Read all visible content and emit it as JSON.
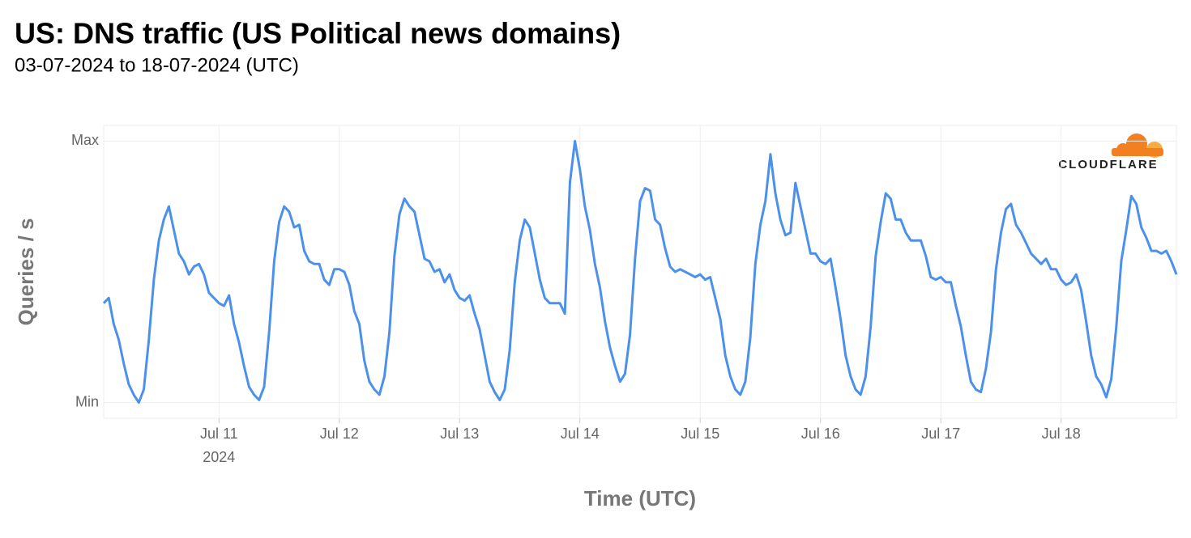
{
  "chart_data": {
    "type": "line",
    "title": "US: DNS traffic (US Political news domains)",
    "subtitle": "03-07-2024 to 18-07-2024 (UTC)",
    "y_label": "Queries / s",
    "x_label": "Time (UTC)",
    "x_year_label": "2024",
    "logo": "CLOUDFLARE",
    "grid": true,
    "xlim": [
      "2024-07-10T01:00",
      "2024-07-18T23:00"
    ],
    "ylim": [
      -0.06,
      1.06
    ],
    "yticks": [
      {
        "value": 0,
        "label": "Min"
      },
      {
        "value": 1,
        "label": "Max"
      }
    ],
    "xticks": [
      {
        "value": "2024-07-11T00:00",
        "label": "Jul 11"
      },
      {
        "value": "2024-07-12T00:00",
        "label": "Jul 12"
      },
      {
        "value": "2024-07-13T00:00",
        "label": "Jul 13"
      },
      {
        "value": "2024-07-14T00:00",
        "label": "Jul 14"
      },
      {
        "value": "2024-07-15T00:00",
        "label": "Jul 15"
      },
      {
        "value": "2024-07-16T00:00",
        "label": "Jul 16"
      },
      {
        "value": "2024-07-17T00:00",
        "label": "Jul 17"
      },
      {
        "value": "2024-07-18T00:00",
        "label": "Jul 18"
      }
    ],
    "x": [
      "2024-07-10T01:00",
      "2024-07-10T02:00",
      "2024-07-10T03:00",
      "2024-07-10T04:00",
      "2024-07-10T05:00",
      "2024-07-10T06:00",
      "2024-07-10T07:00",
      "2024-07-10T08:00",
      "2024-07-10T09:00",
      "2024-07-10T10:00",
      "2024-07-10T11:00",
      "2024-07-10T12:00",
      "2024-07-10T13:00",
      "2024-07-10T14:00",
      "2024-07-10T15:00",
      "2024-07-10T16:00",
      "2024-07-10T17:00",
      "2024-07-10T18:00",
      "2024-07-10T19:00",
      "2024-07-10T20:00",
      "2024-07-10T21:00",
      "2024-07-10T22:00",
      "2024-07-10T23:00",
      "2024-07-11T00:00",
      "2024-07-11T01:00",
      "2024-07-11T02:00",
      "2024-07-11T03:00",
      "2024-07-11T04:00",
      "2024-07-11T05:00",
      "2024-07-11T06:00",
      "2024-07-11T07:00",
      "2024-07-11T08:00",
      "2024-07-11T09:00",
      "2024-07-11T10:00",
      "2024-07-11T11:00",
      "2024-07-11T12:00",
      "2024-07-11T13:00",
      "2024-07-11T14:00",
      "2024-07-11T15:00",
      "2024-07-11T16:00",
      "2024-07-11T17:00",
      "2024-07-11T18:00",
      "2024-07-11T19:00",
      "2024-07-11T20:00",
      "2024-07-11T21:00",
      "2024-07-11T22:00",
      "2024-07-11T23:00",
      "2024-07-12T00:00",
      "2024-07-12T01:00",
      "2024-07-12T02:00",
      "2024-07-12T03:00",
      "2024-07-12T04:00",
      "2024-07-12T05:00",
      "2024-07-12T06:00",
      "2024-07-12T07:00",
      "2024-07-12T08:00",
      "2024-07-12T09:00",
      "2024-07-12T10:00",
      "2024-07-12T11:00",
      "2024-07-12T12:00",
      "2024-07-12T13:00",
      "2024-07-12T14:00",
      "2024-07-12T15:00",
      "2024-07-12T16:00",
      "2024-07-12T17:00",
      "2024-07-12T18:00",
      "2024-07-12T19:00",
      "2024-07-12T20:00",
      "2024-07-12T21:00",
      "2024-07-12T22:00",
      "2024-07-12T23:00",
      "2024-07-13T00:00",
      "2024-07-13T01:00",
      "2024-07-13T02:00",
      "2024-07-13T03:00",
      "2024-07-13T04:00",
      "2024-07-13T05:00",
      "2024-07-13T06:00",
      "2024-07-13T07:00",
      "2024-07-13T08:00",
      "2024-07-13T09:00",
      "2024-07-13T10:00",
      "2024-07-13T11:00",
      "2024-07-13T12:00",
      "2024-07-13T13:00",
      "2024-07-13T14:00",
      "2024-07-13T15:00",
      "2024-07-13T16:00",
      "2024-07-13T17:00",
      "2024-07-13T18:00",
      "2024-07-13T19:00",
      "2024-07-13T20:00",
      "2024-07-13T21:00",
      "2024-07-13T22:00",
      "2024-07-13T23:00",
      "2024-07-14T00:00",
      "2024-07-14T01:00",
      "2024-07-14T02:00",
      "2024-07-14T03:00",
      "2024-07-14T04:00",
      "2024-07-14T05:00",
      "2024-07-14T06:00",
      "2024-07-14T07:00",
      "2024-07-14T08:00",
      "2024-07-14T09:00",
      "2024-07-14T10:00",
      "2024-07-14T11:00",
      "2024-07-14T12:00",
      "2024-07-14T13:00",
      "2024-07-14T14:00",
      "2024-07-14T15:00",
      "2024-07-14T16:00",
      "2024-07-14T17:00",
      "2024-07-14T18:00",
      "2024-07-14T19:00",
      "2024-07-14T20:00",
      "2024-07-14T21:00",
      "2024-07-14T22:00",
      "2024-07-14T23:00",
      "2024-07-15T00:00",
      "2024-07-15T01:00",
      "2024-07-15T02:00",
      "2024-07-15T03:00",
      "2024-07-15T04:00",
      "2024-07-15T05:00",
      "2024-07-15T06:00",
      "2024-07-15T07:00",
      "2024-07-15T08:00",
      "2024-07-15T09:00",
      "2024-07-15T10:00",
      "2024-07-15T11:00",
      "2024-07-15T12:00",
      "2024-07-15T13:00",
      "2024-07-15T14:00",
      "2024-07-15T15:00",
      "2024-07-15T16:00",
      "2024-07-15T17:00",
      "2024-07-15T18:00",
      "2024-07-15T19:00",
      "2024-07-15T20:00",
      "2024-07-15T21:00",
      "2024-07-15T22:00",
      "2024-07-15T23:00",
      "2024-07-16T00:00",
      "2024-07-16T01:00",
      "2024-07-16T02:00",
      "2024-07-16T03:00",
      "2024-07-16T04:00",
      "2024-07-16T05:00",
      "2024-07-16T06:00",
      "2024-07-16T07:00",
      "2024-07-16T08:00",
      "2024-07-16T09:00",
      "2024-07-16T10:00",
      "2024-07-16T11:00",
      "2024-07-16T12:00",
      "2024-07-16T13:00",
      "2024-07-16T14:00",
      "2024-07-16T15:00",
      "2024-07-16T16:00",
      "2024-07-16T17:00",
      "2024-07-16T18:00",
      "2024-07-16T19:00",
      "2024-07-16T20:00",
      "2024-07-16T21:00",
      "2024-07-16T22:00",
      "2024-07-16T23:00",
      "2024-07-17T00:00",
      "2024-07-17T01:00",
      "2024-07-17T02:00",
      "2024-07-17T03:00",
      "2024-07-17T04:00",
      "2024-07-17T05:00",
      "2024-07-17T06:00",
      "2024-07-17T07:00",
      "2024-07-17T08:00",
      "2024-07-17T09:00",
      "2024-07-17T10:00",
      "2024-07-17T11:00",
      "2024-07-17T12:00",
      "2024-07-17T13:00",
      "2024-07-17T14:00",
      "2024-07-17T15:00",
      "2024-07-17T16:00",
      "2024-07-17T17:00",
      "2024-07-17T18:00",
      "2024-07-17T19:00",
      "2024-07-17T20:00",
      "2024-07-17T21:00",
      "2024-07-17T22:00",
      "2024-07-17T23:00",
      "2024-07-18T00:00",
      "2024-07-18T01:00",
      "2024-07-18T02:00",
      "2024-07-18T03:00",
      "2024-07-18T04:00",
      "2024-07-18T05:00",
      "2024-07-18T06:00",
      "2024-07-18T07:00",
      "2024-07-18T08:00",
      "2024-07-18T09:00",
      "2024-07-18T10:00",
      "2024-07-18T11:00",
      "2024-07-18T12:00",
      "2024-07-18T13:00",
      "2024-07-18T14:00",
      "2024-07-18T15:00",
      "2024-07-18T16:00",
      "2024-07-18T17:00",
      "2024-07-18T18:00",
      "2024-07-18T19:00",
      "2024-07-18T20:00",
      "2024-07-18T21:00",
      "2024-07-18T22:00",
      "2024-07-18T23:00"
    ],
    "series": [
      {
        "color": "#4b91ec",
        "values": [
          0.38,
          0.4,
          0.3,
          0.24,
          0.15,
          0.07,
          0.03,
          0,
          0.05,
          0.24,
          0.47,
          0.62,
          0.7,
          0.75,
          0.66,
          0.57,
          0.54,
          0.49,
          0.52,
          0.53,
          0.49,
          0.42,
          0.4,
          0.38,
          0.37,
          0.41,
          0.3,
          0.23,
          0.14,
          0.06,
          0.03,
          0.01,
          0.06,
          0.27,
          0.54,
          0.69,
          0.75,
          0.73,
          0.67,
          0.68,
          0.58,
          0.54,
          0.53,
          0.53,
          0.47,
          0.45,
          0.51,
          0.51,
          0.5,
          0.45,
          0.35,
          0.3,
          0.16,
          0.08,
          0.05,
          0.03,
          0.1,
          0.27,
          0.56,
          0.72,
          0.78,
          0.75,
          0.73,
          0.64,
          0.55,
          0.54,
          0.5,
          0.51,
          0.46,
          0.49,
          0.43,
          0.4,
          0.39,
          0.41,
          0.34,
          0.28,
          0.18,
          0.08,
          0.04,
          0.01,
          0.05,
          0.2,
          0.46,
          0.62,
          0.7,
          0.67,
          0.57,
          0.47,
          0.4,
          0.38,
          0.38,
          0.38,
          0.34,
          0.84,
          1.0,
          0.89,
          0.75,
          0.66,
          0.53,
          0.44,
          0.31,
          0.21,
          0.14,
          0.08,
          0.11,
          0.26,
          0.55,
          0.77,
          0.82,
          0.81,
          0.7,
          0.68,
          0.59,
          0.52,
          0.5,
          0.51,
          0.5,
          0.49,
          0.48,
          0.49,
          0.47,
          0.48,
          0.4,
          0.32,
          0.18,
          0.1,
          0.05,
          0.03,
          0.08,
          0.25,
          0.53,
          0.68,
          0.77,
          0.95,
          0.8,
          0.7,
          0.64,
          0.65,
          0.84,
          0.75,
          0.66,
          0.57,
          0.57,
          0.54,
          0.53,
          0.55,
          0.44,
          0.32,
          0.18,
          0.1,
          0.05,
          0.03,
          0.1,
          0.29,
          0.56,
          0.69,
          0.8,
          0.78,
          0.7,
          0.7,
          0.65,
          0.62,
          0.62,
          0.62,
          0.56,
          0.48,
          0.47,
          0.48,
          0.46,
          0.46,
          0.37,
          0.29,
          0.18,
          0.08,
          0.05,
          0.04,
          0.13,
          0.27,
          0.51,
          0.65,
          0.74,
          0.76,
          0.68,
          0.65,
          0.61,
          0.57,
          0.55,
          0.53,
          0.55,
          0.51,
          0.51,
          0.47,
          0.45,
          0.46,
          0.49,
          0.43,
          0.31,
          0.18,
          0.1,
          0.07,
          0.02,
          0.09,
          0.29,
          0.54,
          0.66,
          0.79,
          0.76,
          0.67,
          0.63,
          0.58,
          0.58,
          0.57,
          0.58,
          0.54,
          0.49
        ]
      }
    ]
  }
}
